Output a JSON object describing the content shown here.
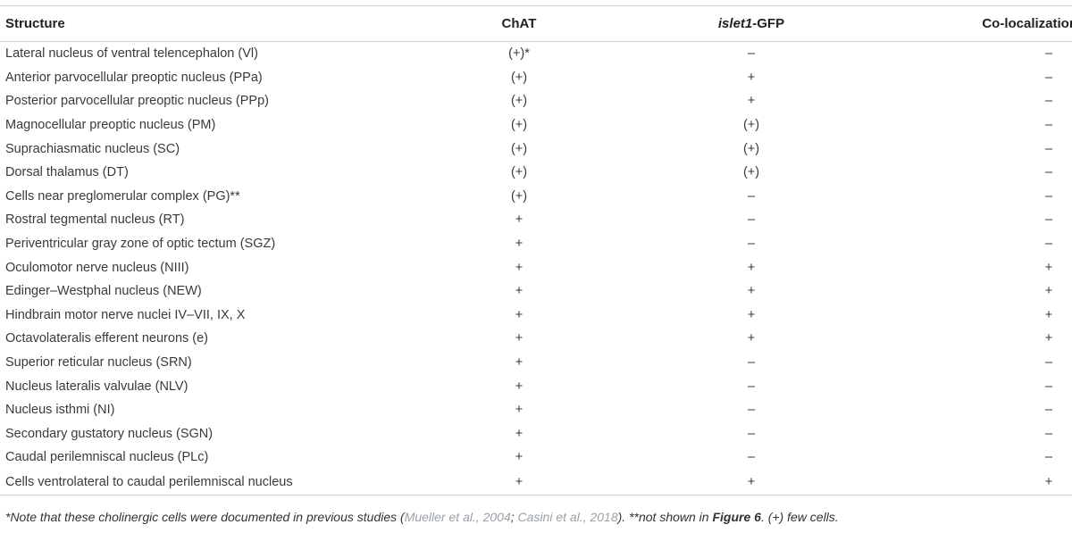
{
  "table": {
    "headers": {
      "structure": "Structure",
      "chat": "ChAT",
      "islet_italic": "islet1",
      "islet_rest": "-GFP",
      "coloc": "Co-localization"
    },
    "rows": [
      {
        "structure": "Lateral nucleus of ventral telencephalon (Vl)",
        "chat": "(+)*",
        "islet": "–",
        "coloc": "–"
      },
      {
        "structure": "Anterior parvocellular preoptic nucleus (PPa)",
        "chat": "(+)",
        "islet": "+",
        "coloc": "–"
      },
      {
        "structure": "Posterior parvocellular preoptic nucleus (PPp)",
        "chat": "(+)",
        "islet": "+",
        "coloc": "–"
      },
      {
        "structure": "Magnocellular preoptic nucleus (PM)",
        "chat": "(+)",
        "islet": "(+)",
        "coloc": "–"
      },
      {
        "structure": "Suprachiasmatic nucleus (SC)",
        "chat": "(+)",
        "islet": "(+)",
        "coloc": "–"
      },
      {
        "structure": "Dorsal thalamus (DT)",
        "chat": "(+)",
        "islet": "(+)",
        "coloc": "–"
      },
      {
        "structure": "Cells near preglomerular complex (PG)**",
        "chat": "(+)",
        "islet": "–",
        "coloc": "–"
      },
      {
        "structure": "Rostral tegmental nucleus (RT)",
        "chat": "+",
        "islet": "–",
        "coloc": "–"
      },
      {
        "structure": "Periventricular gray zone of optic tectum (SGZ)",
        "chat": "+",
        "islet": "–",
        "coloc": "–"
      },
      {
        "structure": "Oculomotor nerve nucleus (NIII)",
        "chat": "+",
        "islet": "+",
        "coloc": "+"
      },
      {
        "structure": "Edinger–Westphal nucleus (NEW)",
        "chat": "+",
        "islet": "+",
        "coloc": "+"
      },
      {
        "structure": "Hindbrain motor nerve nuclei IV–VII, IX, X",
        "chat": "+",
        "islet": "+",
        "coloc": "+"
      },
      {
        "structure": "Octavolateralis efferent neurons (e)",
        "chat": "+",
        "islet": "+",
        "coloc": "+"
      },
      {
        "structure": "Superior reticular nucleus (SRN)",
        "chat": "+",
        "islet": "–",
        "coloc": "–"
      },
      {
        "structure": "Nucleus lateralis valvulae (NLV)",
        "chat": "+",
        "islet": "–",
        "coloc": "–"
      },
      {
        "structure": "Nucleus isthmi (NI)",
        "chat": "+",
        "islet": "–",
        "coloc": "–"
      },
      {
        "structure": "Secondary gustatory nucleus (SGN)",
        "chat": "+",
        "islet": "–",
        "coloc": "–"
      },
      {
        "structure": "Caudal perilemniscal nucleus (PLc)",
        "chat": "+",
        "islet": "–",
        "coloc": "–"
      },
      {
        "structure": "Cells ventrolateral to caudal perilemniscal nucleus",
        "chat": "+",
        "islet": "+",
        "coloc": "+"
      }
    ]
  },
  "footnote": {
    "part1": "*Note that these cholinergic cells were documented in previous studies (",
    "cite1": "Mueller et al., 2004",
    "sep": "; ",
    "cite2": "Casini et al., 2018",
    "part2": "). **not shown in ",
    "figure_ref": "Figure 6",
    "part3": ". (+) few cells."
  }
}
